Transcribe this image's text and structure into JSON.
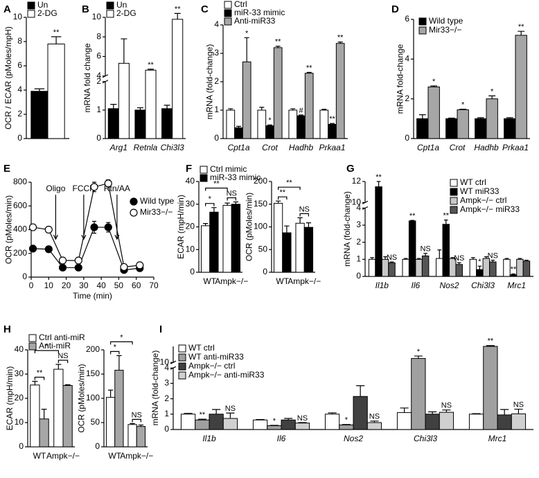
{
  "chart_data": [
    {
      "type": "bar",
      "panel": "A",
      "ylabel": "OCR / ECAR (pMoles/mpH)",
      "categories": [
        null
      ],
      "ylim": [
        0,
        10
      ],
      "yticks": [
        0,
        2,
        4,
        6,
        8,
        10
      ],
      "legend": "top",
      "series": [
        {
          "name": "Un",
          "color": "#000000",
          "values": [
            3.9
          ],
          "errors": [
            0.2
          ],
          "significance": [
            null
          ]
        },
        {
          "name": "2-DG",
          "color": "#ffffff",
          "values": [
            7.8
          ],
          "errors": [
            0.6
          ],
          "significance": [
            "**"
          ]
        }
      ]
    },
    {
      "type": "bar",
      "panel": "B",
      "ylabel": "mRNA fold change",
      "categories": [
        "Arg1",
        "Retnla",
        "Chi3l3"
      ],
      "category_style": "italic",
      "ylim": [
        0,
        10
      ],
      "yticks": [
        0,
        1,
        2,
        4,
        6,
        8,
        10
      ],
      "ybreak": [
        2,
        4
      ],
      "legend": "top",
      "series": [
        {
          "name": "Un",
          "color": "#000000",
          "values": [
            1.05,
            1.0,
            1.05
          ],
          "errors": [
            0.15,
            0.08,
            0.12
          ],
          "significance": [
            null,
            null,
            null
          ]
        },
        {
          "name": "2-DG",
          "color": "#ffffff",
          "values": [
            5.3,
            4.6,
            9.8
          ],
          "errors": [
            2.5,
            0.1,
            0.6
          ],
          "significance": [
            null,
            "**",
            "**"
          ]
        }
      ]
    },
    {
      "type": "bar",
      "panel": "C",
      "ylabel": "mRNA (fold-change)",
      "categories": [
        "Cpt1a",
        "Crot",
        "Hadhb",
        "Prkaa1"
      ],
      "category_style": "italic",
      "ylim": [
        0,
        4
      ],
      "yticks": [
        0,
        1,
        2,
        3,
        4
      ],
      "legend": "top",
      "series": [
        {
          "name": "Ctrl",
          "color": "#ffffff",
          "values": [
            1.0,
            1.0,
            1.0,
            1.0
          ],
          "errors": [
            0.05,
            0.1,
            0.05,
            0.03
          ],
          "significance": [
            null,
            null,
            null,
            null
          ]
        },
        {
          "name": "miR-33 mimic",
          "color": "#000000",
          "values": [
            0.38,
            0.45,
            0.8,
            0.5
          ],
          "errors": [
            0.05,
            0.03,
            0.03,
            0.03
          ],
          "significance": [
            null,
            "*",
            "#",
            "**"
          ]
        },
        {
          "name": "Anti-miR33",
          "color": "#a6a6a6",
          "values": [
            2.7,
            3.2,
            2.3,
            3.35
          ],
          "errors": [
            0.85,
            0.05,
            0.03,
            0.05
          ],
          "significance": [
            "*",
            "**",
            "**",
            "**"
          ]
        }
      ]
    },
    {
      "type": "bar",
      "panel": "D",
      "ylabel": "mRNA fold-change",
      "categories": [
        "Cpt1a",
        "Crot",
        "Hadhb",
        "Prkaa1"
      ],
      "category_style": "italic",
      "ylim": [
        0,
        6
      ],
      "yticks": [
        0,
        2,
        4,
        6
      ],
      "legend": "upper left",
      "series": [
        {
          "name": "Wild type",
          "color": "#000000",
          "values": [
            1.0,
            1.0,
            1.0,
            1.0
          ],
          "errors": [
            0.2,
            0.03,
            0.05,
            0.05
          ],
          "significance": [
            null,
            null,
            null,
            null
          ]
        },
        {
          "name": "Mir33−/−",
          "color": "#a6a6a6",
          "values": [
            2.6,
            1.45,
            2.0,
            5.2
          ],
          "errors": [
            0.05,
            0.03,
            0.15,
            0.2
          ],
          "significance": [
            "*",
            "*",
            "*",
            "**"
          ]
        }
      ]
    },
    {
      "type": "line",
      "panel": "E",
      "ylabel": "OCR (pMoles/min)",
      "xlabel": "Time (min)",
      "x": [
        1,
        10,
        18,
        27,
        36,
        44,
        53,
        62
      ],
      "xlim": [
        0,
        70
      ],
      "xticks": [
        0,
        10,
        20,
        30,
        40,
        50,
        60,
        70
      ],
      "ylim": [
        0,
        800
      ],
      "yticks": [
        0,
        200,
        400,
        600,
        800
      ],
      "legend": "right",
      "annotations": [
        {
          "text": "Oligo",
          "x": 14
        },
        {
          "text": "FCCP",
          "x": 30
        },
        {
          "text": "Rtn/AA",
          "x": 49
        }
      ],
      "series": [
        {
          "name": "Wild type",
          "color": "#000000",
          "marker_fill": "#000000",
          "values": [
            240,
            235,
            80,
            80,
            420,
            420,
            60,
            75
          ],
          "errors": [
            null,
            null,
            null,
            null,
            50,
            40,
            null,
            null
          ]
        },
        {
          "name": "Mir33−/−",
          "color": "#000000",
          "marker_fill": "#ffffff",
          "values": [
            420,
            400,
            140,
            140,
            760,
            790,
            85,
            100
          ],
          "errors": [
            null,
            null,
            null,
            null,
            40,
            30,
            null,
            null
          ]
        }
      ]
    },
    {
      "type": "bar",
      "panel": "F",
      "ylabel": "ECAR (mpH/min)",
      "categories": [
        "WT",
        "Ampk−/−"
      ],
      "ylim": [
        0,
        40
      ],
      "yticks": [
        0,
        10,
        20,
        30,
        40
      ],
      "legend": "top",
      "comparisons": [
        {
          "text": "*",
          "a": [
            0,
            0
          ],
          "b": [
            1,
            0
          ]
        },
        {
          "text": "NS",
          "a": [
            0,
            1
          ],
          "b": [
            1,
            1
          ]
        },
        {
          "text": "**",
          "a": [
            0,
            0
          ],
          "b": [
            0,
            1
          ]
        }
      ],
      "series": [
        {
          "name": "Ctrl mimic",
          "color": "#ffffff",
          "values": [
            20.5,
            29.5
          ],
          "errors": [
            1,
            1
          ]
        },
        {
          "name": "miR-33 mimic",
          "color": "#000000",
          "values": [
            26.5,
            30
          ],
          "errors": [
            2,
            1
          ]
        }
      ]
    },
    {
      "type": "bar",
      "ylabel": "OCR (pMoles/min)",
      "categories": [
        "WT",
        "Ampk−/−"
      ],
      "ylim": [
        0,
        200
      ],
      "yticks": [
        0,
        50,
        100,
        150,
        200
      ],
      "comparisons": [
        {
          "text": "**",
          "a": [
            0,
            0
          ],
          "b": [
            1,
            0
          ]
        },
        {
          "text": "NS",
          "a": [
            0,
            1
          ],
          "b": [
            1,
            1
          ]
        },
        {
          "text": "**",
          "a": [
            0,
            0
          ],
          "b": [
            0,
            1
          ]
        }
      ],
      "series": [
        {
          "color": "#ffffff",
          "values": [
            152,
            108
          ],
          "errors": [
            5,
            12
          ]
        },
        {
          "color": "#000000",
          "values": [
            87,
            99
          ],
          "errors": [
            15,
            10
          ]
        }
      ]
    },
    {
      "type": "bar",
      "panel": "G",
      "ylabel": "mRNA (fold-change)",
      "categories": [
        "Il1b",
        "Il6",
        "Nos2",
        "Chi3l3",
        "Mrc1"
      ],
      "category_style": "italic",
      "ylim": [
        0,
        12
      ],
      "yticks": [
        0,
        1,
        2,
        3,
        4,
        10,
        12
      ],
      "ybreak": [
        4,
        10
      ],
      "legend": "upper right",
      "series": [
        {
          "name": "WT ctrl",
          "color": "#ffffff",
          "values": [
            1.0,
            1.0,
            1.05,
            1.0,
            1.0
          ],
          "errors": [
            0.1,
            0.05,
            0.5,
            0.1,
            0.05
          ],
          "significance": [
            null,
            null,
            null,
            null,
            null
          ]
        },
        {
          "name": "WT miR33",
          "color": "#000000",
          "values": [
            11.5,
            3.25,
            3.05,
            0.4,
            0.1
          ],
          "errors": [
            0.5,
            0.03,
            0.25,
            0.2,
            0.05
          ],
          "significance": [
            "**",
            "**",
            "**",
            "*",
            "**"
          ]
        },
        {
          "name": "Ampk−/− ctrl",
          "color": "#c8c8c8",
          "values": [
            1.0,
            1.0,
            1.05,
            1.05,
            1.0
          ],
          "errors": [
            0.15,
            0.05,
            0.05,
            0.1,
            0.05
          ],
          "significance": [
            null,
            null,
            null,
            null,
            null
          ]
        },
        {
          "name": "Ampk−/− miR33",
          "color": "#555555",
          "values": [
            0.8,
            1.2,
            0.7,
            0.85,
            0.9
          ],
          "errors": [
            0.05,
            0.15,
            0.1,
            0.1,
            0.05
          ],
          "significance": [
            "NS",
            "NS",
            "NS",
            "NS",
            null
          ]
        }
      ]
    },
    {
      "type": "bar",
      "panel": "H",
      "ylabel": "ECAR (mpH/min)",
      "categories": [
        "WT",
        "Ampk−/−"
      ],
      "ylim": [
        0,
        40
      ],
      "yticks": [
        0,
        10,
        20,
        30,
        40
      ],
      "legend": "top",
      "comparisons": [
        {
          "text": "**",
          "a": [
            0,
            0
          ],
          "b": [
            1,
            0
          ]
        },
        {
          "text": "NS",
          "a": [
            0,
            1
          ],
          "b": [
            1,
            1
          ]
        },
        {
          "text": "*",
          "a": [
            0,
            0
          ],
          "b": [
            0,
            1
          ]
        }
      ],
      "series": [
        {
          "name": "Ctrl anti-miR",
          "color": "#ffffff",
          "values": [
            25.5,
            32
          ],
          "errors": [
            1.5,
            2
          ]
        },
        {
          "name": "Anti-miR",
          "color": "#a6a6a6",
          "values": [
            11.5,
            25.3
          ],
          "errors": [
            4,
            0.3
          ]
        }
      ]
    },
    {
      "type": "bar",
      "ylabel": "OCR (pMoles/min)",
      "categories": [
        "WT",
        "Ampk−/−"
      ],
      "ylim": [
        0,
        200
      ],
      "yticks": [
        0,
        50,
        100,
        150,
        200
      ],
      "comparisons": [
        {
          "text": "*",
          "a": [
            0,
            0
          ],
          "b": [
            1,
            0
          ]
        },
        {
          "text": "NS",
          "a": [
            0,
            1
          ],
          "b": [
            1,
            1
          ]
        },
        {
          "text": "*",
          "a": [
            0,
            0
          ],
          "b": [
            0,
            1
          ]
        }
      ],
      "series": [
        {
          "color": "#ffffff",
          "values": [
            102,
            46
          ],
          "errors": [
            15,
            2
          ]
        },
        {
          "color": "#a6a6a6",
          "values": [
            158,
            42
          ],
          "errors": [
            30,
            3
          ]
        }
      ]
    },
    {
      "type": "bar",
      "panel": "I",
      "ylabel": "mRNA (fold-change)",
      "categories": [
        "Il1b",
        "Il6",
        "Nos2",
        "Chi3l3",
        "Mrc1"
      ],
      "category_style": "italic",
      "ylim": [
        0,
        12
      ],
      "yticks": [
        0,
        1,
        2,
        3,
        4,
        10
      ],
      "ybreak": [
        4,
        10
      ],
      "legend": "upper left",
      "series": [
        {
          "name": "WT ctrl",
          "color": "#ffffff",
          "values": [
            1.0,
            0.62,
            1.0,
            1.1,
            1.0
          ],
          "errors": [
            0.05,
            0.03,
            0.08,
            0.3,
            0.03
          ],
          "significance": [
            null,
            null,
            null,
            null,
            null
          ]
        },
        {
          "name": "WT anti-miR33",
          "color": "#a0a0a0",
          "values": [
            0.62,
            0.25,
            0.3,
            10.5,
            12
          ],
          "errors": [
            0.05,
            0.02,
            0.03,
            0.3,
            0.1
          ],
          "significance": [
            "**",
            "*",
            "*",
            "*",
            "**"
          ]
        },
        {
          "name": "Ampk−/− ctrl",
          "color": "#404040",
          "values": [
            1.0,
            0.62,
            2.15,
            1.0,
            0.95
          ],
          "errors": [
            0.3,
            0.1,
            0.7,
            0.15,
            0.35
          ],
          "significance": [
            null,
            null,
            null,
            null,
            null
          ]
        },
        {
          "name": "Ampk−/− anti-miR33",
          "color": "#d0d0d0",
          "values": [
            0.72,
            0.42,
            0.45,
            1.12,
            1.02
          ],
          "errors": [
            0.35,
            0.03,
            0.1,
            0.15,
            0.3
          ],
          "significance": [
            "NS",
            "NS",
            "NS",
            "NS",
            "NS"
          ]
        }
      ]
    }
  ]
}
